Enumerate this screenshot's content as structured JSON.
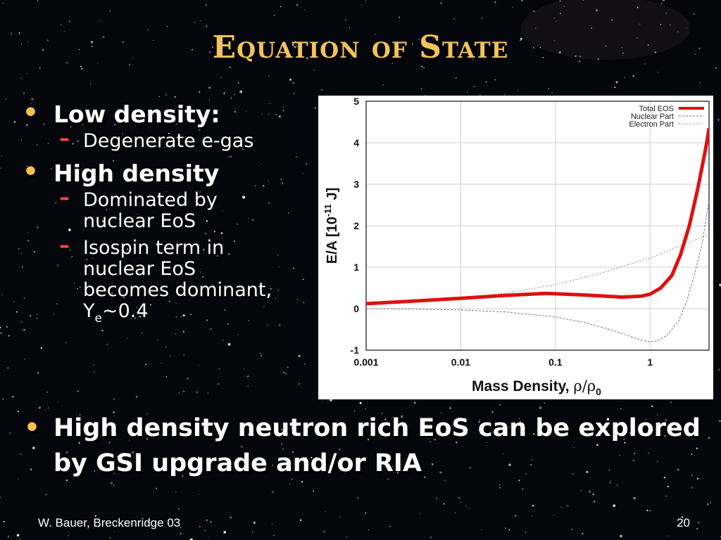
{
  "slide": {
    "title": "Equation of State",
    "bullet_icon": "bullet-dot",
    "bullets": [
      {
        "text": "Low density:",
        "subs": [
          {
            "text": "Degenerate e-gas"
          }
        ]
      },
      {
        "text": "High density",
        "subs": [
          {
            "lines": [
              "Dominated by",
              "nuclear EoS"
            ]
          },
          {
            "lines": [
              "Isospin term in",
              "nuclear EoS",
              "becomes dominant,"
            ],
            "last_main": "Y",
            "last_sub": "e",
            "last_tail": "~0.4"
          }
        ]
      }
    ],
    "bottom_bullet": {
      "line1": "High density neutron rich EoS can be explored",
      "line2": "by GSI upgrade and/or RIA"
    },
    "footer_left": "W. Bauer, Breckenridge 03",
    "page_number": "20",
    "colors": {
      "title": "#f2c35a",
      "bullet": "#f5c24f",
      "dash": "#ff4a3a",
      "background": "#05060c"
    }
  },
  "chart_data": {
    "type": "line",
    "x_scale": "log",
    "xlim": [
      0.001,
      4.2
    ],
    "ylim": [
      -1,
      5
    ],
    "xticks": [
      "0.001",
      "0.01",
      "0.1",
      "1"
    ],
    "yticks": [
      "5",
      "4",
      "3",
      "2",
      "1",
      "0",
      "-1"
    ],
    "ylabel": "E/A [10",
    "ylabel_sup": "-11",
    "ylabel_tail": " J]",
    "xlabel": "Mass Density, ",
    "xlabel_symbol": "ρ/ρ",
    "xlabel_sub": "0",
    "grid": true,
    "legend_position": "top-right",
    "series": [
      {
        "name": "Total EOS",
        "color": "#dd1111",
        "style": "solid-thick",
        "x": [
          0.001,
          0.003,
          0.01,
          0.03,
          0.08,
          0.2,
          0.5,
          0.8,
          1.0,
          1.3,
          1.7,
          2.1,
          2.6,
          3.2,
          3.9,
          4.2
        ],
        "y": [
          0.12,
          0.18,
          0.25,
          0.32,
          0.37,
          0.33,
          0.28,
          0.3,
          0.35,
          0.5,
          0.8,
          1.3,
          2.0,
          2.9,
          3.9,
          4.35
        ]
      },
      {
        "name": "Nuclear Part",
        "color": "#777777",
        "style": "dashed",
        "x": [
          0.001,
          0.003,
          0.01,
          0.03,
          0.1,
          0.2,
          0.4,
          0.6,
          0.8,
          1.0,
          1.2,
          1.5,
          2.0,
          2.5,
          3.0,
          3.5,
          4.2
        ],
        "y": [
          0.0,
          -0.01,
          -0.03,
          -0.08,
          -0.2,
          -0.33,
          -0.52,
          -0.66,
          -0.76,
          -0.8,
          -0.78,
          -0.65,
          -0.3,
          0.25,
          0.9,
          1.5,
          2.6
        ]
      },
      {
        "name": "Electron Part",
        "color": "#777777",
        "style": "dotted",
        "x": [
          0.001,
          0.003,
          0.01,
          0.03,
          0.1,
          0.3,
          0.6,
          1.0,
          1.5,
          2.0,
          3.0,
          4.2
        ],
        "y": [
          0.12,
          0.17,
          0.25,
          0.38,
          0.58,
          0.85,
          1.07,
          1.22,
          1.38,
          1.5,
          1.66,
          1.8
        ]
      }
    ]
  }
}
